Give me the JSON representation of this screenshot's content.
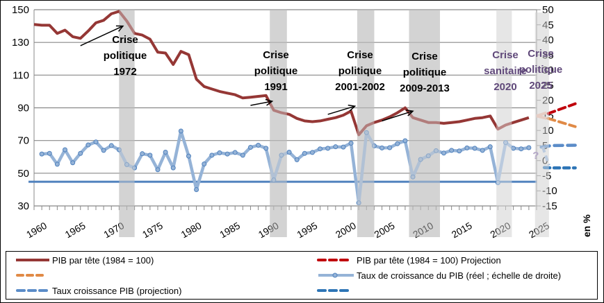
{
  "chart_data": {
    "type": "line",
    "title": "",
    "xlabel": "",
    "ylabel_left": "",
    "ylabel_right": "en %",
    "x_ticks": [
      "1960",
      "1965",
      "1970",
      "1975",
      "1980",
      "1985",
      "1990",
      "1995",
      "2000",
      "2005",
      "2010",
      "2015",
      "2020",
      "2025"
    ],
    "ylim_left": [
      30,
      150
    ],
    "y_ticks_left": [
      "150",
      "130",
      "110",
      "90",
      "70",
      "50",
      "30"
    ],
    "ylim_right": [
      -15,
      50
    ],
    "y_ticks_right": [
      "50",
      "45",
      "40",
      "35",
      "30",
      "25",
      "20",
      "15",
      "10",
      "5",
      "0",
      "-5",
      "-10",
      "-15"
    ],
    "x_range": [
      1960,
      2030
    ],
    "grid": true,
    "legend_position": "bottom",
    "series": [
      {
        "name": "PIB par tête (1984 = 100)",
        "axis": "left",
        "color": "#953735",
        "style": "solid",
        "x": [
          1960,
          1961,
          1962,
          1963,
          1964,
          1965,
          1966,
          1967,
          1968,
          1969,
          1970,
          1971,
          1972,
          1973,
          1974,
          1975,
          1976,
          1977,
          1978,
          1979,
          1980,
          1981,
          1982,
          1983,
          1984,
          1985,
          1986,
          1987,
          1988,
          1989,
          1990,
          1991,
          1992,
          1993,
          1994,
          1995,
          1996,
          1997,
          1998,
          1999,
          2000,
          2001,
          2002,
          2003,
          2004,
          2005,
          2006,
          2007,
          2008,
          2009,
          2010,
          2011,
          2012,
          2013,
          2014,
          2015,
          2016,
          2017,
          2018,
          2019,
          2020,
          2021,
          2022,
          2023,
          2024
        ],
        "values": [
          141,
          140.5,
          140.5,
          135.5,
          137.5,
          133.5,
          132.5,
          137,
          142,
          143.5,
          147.5,
          149,
          143,
          135.5,
          134.5,
          132,
          124,
          123.5,
          116.5,
          124.5,
          122.5,
          107.5,
          103,
          101.5,
          100,
          99,
          98,
          96,
          96.5,
          97,
          97.5,
          88.5,
          87,
          86,
          83.5,
          82,
          81.5,
          82,
          83,
          84,
          85.5,
          88,
          73.5,
          79,
          81,
          82.5,
          84.5,
          87,
          90,
          84,
          82.5,
          81,
          81,
          80.5,
          81,
          81.5,
          82.5,
          83.5,
          84,
          85,
          77,
          79.5,
          81,
          82.5,
          84
        ]
      },
      {
        "name": "PIB par tête (1984 = 100) Projection",
        "axis": "left",
        "color": "#C0000B",
        "style": "dashed",
        "x": [
          2025,
          2026,
          2027,
          2028,
          2029,
          2030
        ],
        "values": [
          85,
          86.5,
          88,
          89.5,
          91,
          92.5
        ]
      },
      {
        "name": "",
        "axis": "left",
        "color": "#E08A46",
        "style": "dashed",
        "x": [
          2025,
          2026,
          2027,
          2028,
          2029,
          2030
        ],
        "values": [
          85,
          84,
          82.5,
          81,
          79.5,
          78.5
        ]
      },
      {
        "name": "Taux de croissance du PIB (réel ; échelle de droite)",
        "axis": "right",
        "color": "#95B3D7",
        "style": "solid-markers",
        "x": [
          1961,
          1962,
          1963,
          1964,
          1965,
          1966,
          1967,
          1968,
          1969,
          1970,
          1971,
          1972,
          1973,
          1974,
          1975,
          1976,
          1977,
          1978,
          1979,
          1980,
          1981,
          1982,
          1983,
          1984,
          1985,
          1986,
          1987,
          1988,
          1989,
          1990,
          1991,
          1992,
          1993,
          1994,
          1995,
          1996,
          1997,
          1998,
          1999,
          2000,
          2001,
          2002,
          2003,
          2004,
          2005,
          2006,
          2007,
          2008,
          2009,
          2010,
          2011,
          2012,
          2013,
          2014,
          2015,
          2016,
          2017,
          2018,
          2019,
          2020,
          2021,
          2022,
          2023,
          2024
        ],
        "values": [
          2.2,
          2.4,
          -1.2,
          3.6,
          -0.7,
          2.4,
          5.2,
          6.2,
          3.4,
          5,
          3.6,
          -1.3,
          -2.4,
          2.3,
          1.8,
          -3,
          2.8,
          -2.4,
          9.8,
          1.5,
          -9.6,
          -1.1,
          1.8,
          2.6,
          2.2,
          2.7,
          1.8,
          4.4,
          5.1,
          4.1,
          -6.4,
          1.8,
          2.8,
          0.3,
          2.4,
          2.7,
          3.9,
          4.1,
          4.6,
          4.5,
          5.8,
          -14,
          9.3,
          4.9,
          4.2,
          4.3,
          5.6,
          6.6,
          -5.4,
          0.4,
          1.6,
          3.3,
          2.5,
          3.4,
          3.2,
          4.2,
          4.1,
          3.4,
          4.6,
          -7.3,
          6,
          4.1,
          3.9,
          4.3
        ]
      },
      {
        "name": "Taux croissance PIB (projection)",
        "axis": "right",
        "color": "#5B8CC8",
        "style": "dashed",
        "x": [
          2024,
          2025,
          2026,
          2027,
          2028,
          2029,
          2030
        ],
        "values": [
          4.3,
          4.6,
          4.8,
          4.9,
          5,
          5,
          5.1
        ]
      },
      {
        "name": "",
        "axis": "right",
        "color": "#2E75B6",
        "style": "dashed",
        "x": [
          2026,
          2027,
          2028,
          2029,
          2030
        ],
        "values": [
          -2.3,
          -2.4,
          -2.4,
          -2.4,
          -2.4
        ]
      },
      {
        "name": "reference-line",
        "axis": "right",
        "color": "#4F81BD",
        "style": "solid",
        "x": [
          1957,
          2030
        ],
        "values": [
          -7,
          -7
        ]
      }
    ],
    "crisis_bands": [
      {
        "label_lines": [
          "Crise",
          "politique",
          "1972"
        ],
        "start": 1971,
        "end": 1973,
        "color": "#d3d3d3",
        "text_color": "#000000"
      },
      {
        "label_lines": [
          "Crise",
          "politique",
          "1991"
        ],
        "start": 1990.5,
        "end": 1992.7,
        "color": "#d3d3d3",
        "text_color": "#000000"
      },
      {
        "label_lines": [
          "Crise",
          "politique",
          "2001-2002"
        ],
        "start": 2001.8,
        "end": 2004,
        "color": "#d3d3d3",
        "text_color": "#000000"
      },
      {
        "label_lines": [
          "Crise",
          "politique",
          "2009-2013"
        ],
        "start": 2008.5,
        "end": 2012.5,
        "color": "#d3d3d3",
        "text_color": "#000000"
      },
      {
        "label_lines": [
          "Crise",
          "sanitaire",
          "2020"
        ],
        "start": 2019.8,
        "end": 2021.8,
        "color": "#e6e6e6",
        "text_color": "#60497A"
      },
      {
        "label_lines": [
          "Crise",
          "politique",
          "2025"
        ],
        "start": 2024.8,
        "end": 2026.6,
        "color": "#e6e6e6",
        "text_color": "#60497A"
      }
    ],
    "annotations": [
      {
        "type": "arrow",
        "from": [
          1966,
          128
        ],
        "to": [
          1971.5,
          140
        ]
      },
      {
        "type": "arrow",
        "from": [
          1988,
          91.5
        ],
        "to": [
          1990.8,
          94
        ]
      },
      {
        "type": "arrow",
        "from": [
          1998,
          86
        ],
        "to": [
          2001.5,
          91
        ]
      },
      {
        "type": "arrow",
        "from": [
          2005,
          82
        ],
        "to": [
          2009,
          88
        ]
      },
      {
        "type": "text",
        "text": "?",
        "x": 2024.9,
        "y_right": 2
      }
    ]
  },
  "legend": {
    "items": [
      {
        "label": "PIB par tête (1984 = 100)",
        "color": "#953735",
        "style": "solid"
      },
      {
        "label": "PIB par tête (1984 = 100) Projection",
        "color": "#C0000B",
        "style": "dashed"
      },
      {
        "label": "",
        "color": "#E08A46",
        "style": "dashed"
      },
      {
        "label": "Taux de croissance du PIB (réel ; échelle de droite)",
        "color": "#95B3D7",
        "style": "marker"
      },
      {
        "label": "Taux croissance PIB (projection)",
        "color": "#5B8CC8",
        "style": "dashed"
      },
      {
        "label": "",
        "color": "#2E75B6",
        "style": "dashed"
      }
    ]
  },
  "unit_label": "en %"
}
